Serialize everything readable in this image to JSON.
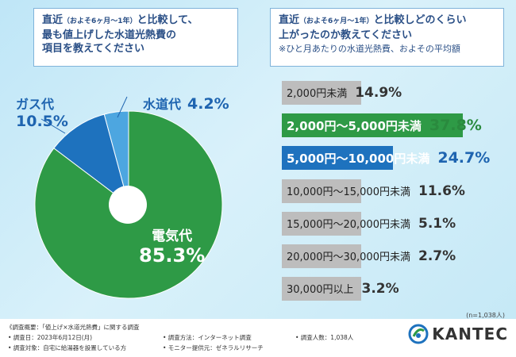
{
  "left_title": {
    "line1_a": "直近",
    "line1_small": "（およそ6ヶ月〜1年）",
    "line1_b": "と比較して、",
    "line2": "最も値上げした水道光熱費の",
    "line3": "項目を教えてください"
  },
  "right_title": {
    "line1_a": "直近",
    "line1_small": "（およそ6ヶ月〜1年）",
    "line1_b": "と比較しどのくらい",
    "line2": "上がったのか教えてください",
    "note": "※ひと月あたりの水道光熱費、およその平均額"
  },
  "colors": {
    "electric": "#2e9a46",
    "gas": "#1e72be",
    "water": "#4da6e0",
    "bar_gray": "#bdbdbd",
    "bar_green": "#2e9a46",
    "bar_blue": "#1e72be"
  },
  "chart_data": [
    {
      "type": "pie",
      "title": "最も値上げした水道光熱費の項目",
      "slices": [
        {
          "label": "電気代",
          "value": 85.3,
          "display": "85.3%"
        },
        {
          "label": "ガス代",
          "value": 10.5,
          "display": "10.5%"
        },
        {
          "label": "水道代",
          "value": 4.2,
          "display": "4.2%"
        }
      ]
    },
    {
      "type": "bar",
      "orientation": "horizontal",
      "title": "どのくらい上がったのか",
      "categories": [
        "2,000円未満",
        "2,000円〜5,000円未満",
        "5,000円〜10,000円未満",
        "10,000円〜15,000円未満",
        "15,000円〜20,000円未満",
        "20,000円〜30,000円未満",
        "30,000円以上"
      ],
      "values": [
        14.9,
        37.8,
        24.7,
        11.6,
        5.1,
        2.7,
        3.2
      ],
      "displays": [
        "14.9%",
        "37.8%",
        "24.7%",
        "11.6%",
        "5.1%",
        "2.7%",
        "3.2%"
      ],
      "n_note": "(n=1,038人)"
    }
  ],
  "footer": {
    "outline": "《調査概要：「値上げ×水道光熱費」に関する調査",
    "date": "• 調査日：2023年6月12日(月)",
    "method": "• 調査方法：インターネット調査",
    "count": "• 調査人数：1,038人",
    "target": "• 調査対象：自宅に給湯器を設置している方",
    "provider": "• モニター提供元：ゼネラルリサーチ"
  },
  "logo": {
    "text": "KANTEC"
  }
}
